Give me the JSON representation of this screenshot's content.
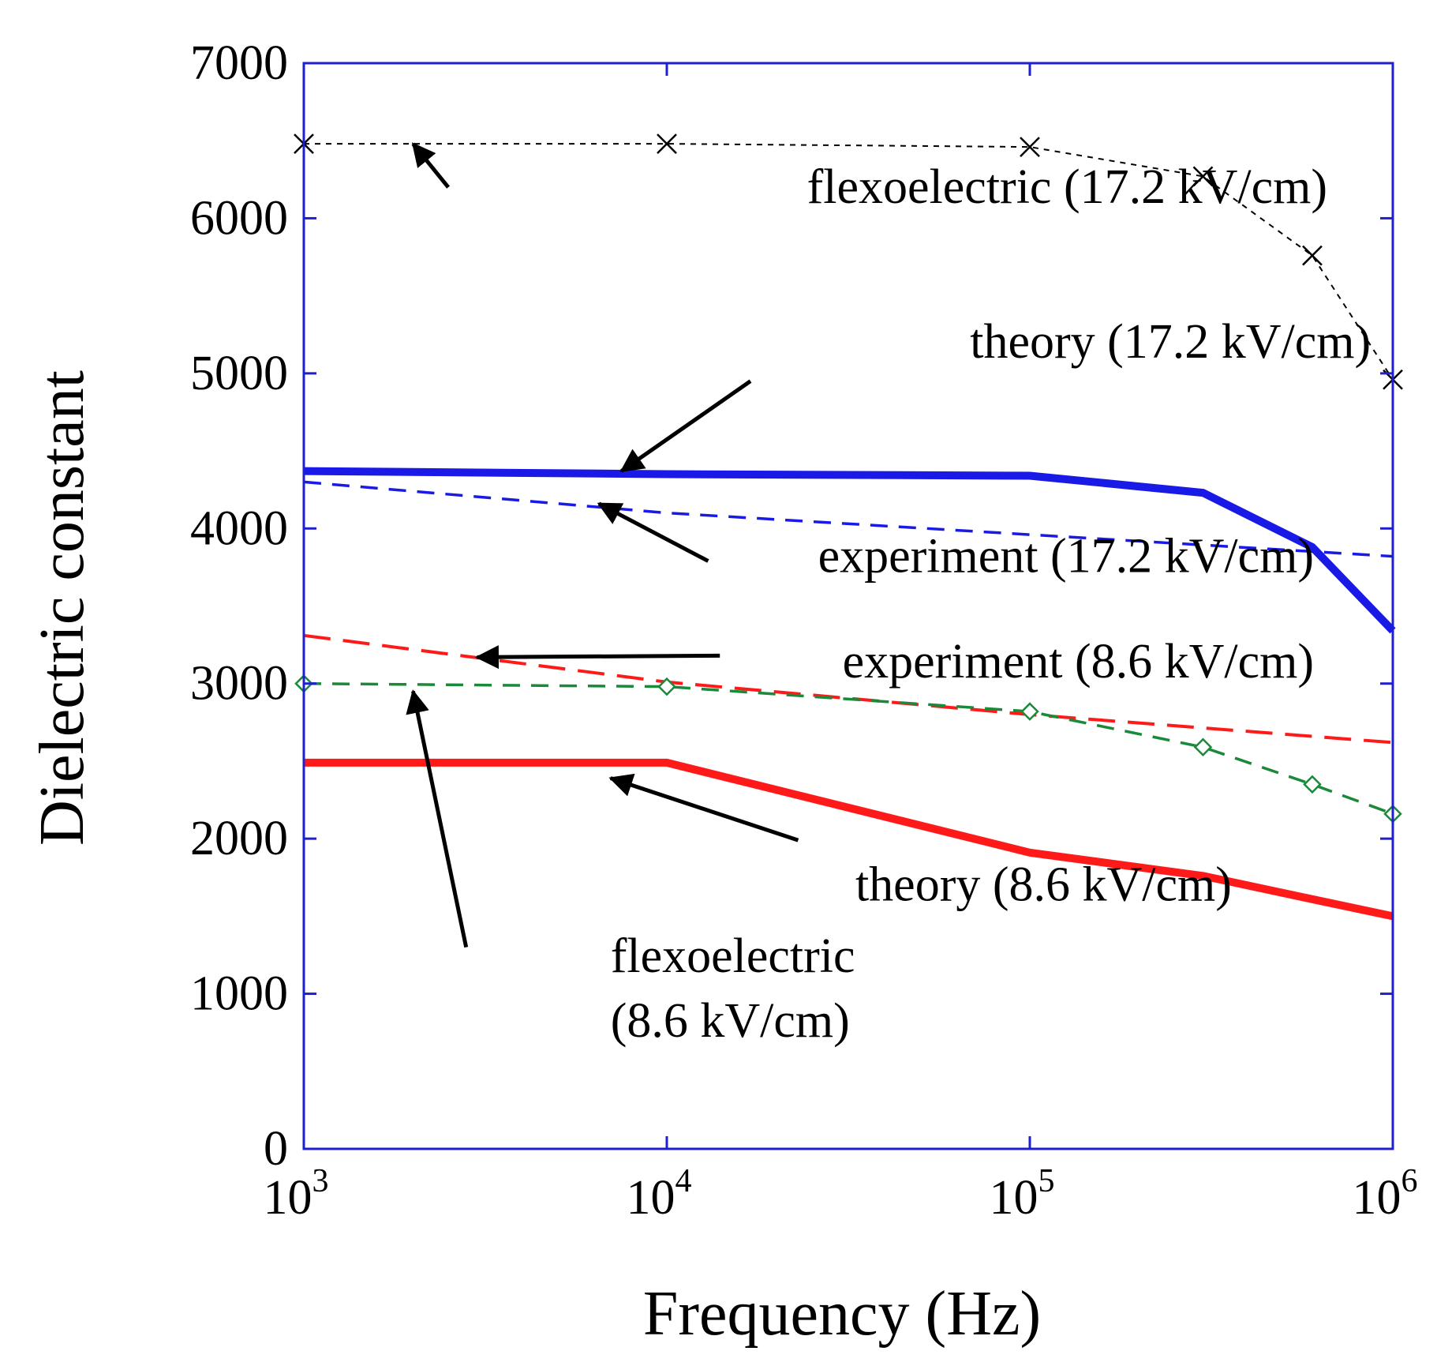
{
  "chart_data": {
    "type": "line",
    "title": "",
    "xlabel": "Frequency (Hz)",
    "ylabel": "Dielectric constant",
    "xscale": "log",
    "xlim": [
      1000,
      1000000
    ],
    "ylim": [
      0,
      7000
    ],
    "grid": false,
    "x_ticks": [
      {
        "value": 1000,
        "base": "10",
        "exp": "3"
      },
      {
        "value": 10000,
        "base": "10",
        "exp": "4"
      },
      {
        "value": 100000,
        "base": "10",
        "exp": "5"
      },
      {
        "value": 1000000,
        "base": "10",
        "exp": "6"
      }
    ],
    "y_ticks": [
      "0",
      "1000",
      "2000",
      "3000",
      "4000",
      "5000",
      "6000",
      "7000"
    ],
    "colors": {
      "axes": "#1f1fd0",
      "blue": "#1a1ae6",
      "red": "#ff1a1a",
      "green": "#1a8a3a",
      "black": "#000000"
    },
    "series": [
      {
        "name": "flexoelectric (17.2 kV/cm)",
        "color": "#000000",
        "style": "dotted",
        "marker": "x",
        "x": [
          1000,
          10000,
          100000,
          300000,
          600000,
          1000000
        ],
        "y": [
          6480,
          6480,
          6460,
          6270,
          5760,
          4960
        ]
      },
      {
        "name": "theory (17.2 kV/cm)",
        "color": "#1a1ae6",
        "style": "solid-thick",
        "marker": "none",
        "x": [
          1000,
          10000,
          100000,
          300000,
          600000,
          1000000
        ],
        "y": [
          4370,
          4350,
          4340,
          4230,
          3880,
          3340
        ]
      },
      {
        "name": "experiment (17.2 kV/cm)",
        "color": "#1a1ae6",
        "style": "dashed",
        "marker": "none",
        "x": [
          1000,
          10000,
          100000,
          1000000
        ],
        "y": [
          4300,
          4100,
          3960,
          3820
        ]
      },
      {
        "name": "experiment (8.6 kV/cm)",
        "color": "#ff1a1a",
        "style": "dashed-long",
        "marker": "none",
        "x": [
          1000,
          10000,
          100000,
          1000000
        ],
        "y": [
          3310,
          3010,
          2800,
          2620
        ]
      },
      {
        "name": "flexoelectric (8.6 kV/cm)",
        "color": "#1a8a3a",
        "style": "dashed",
        "marker": "diamond",
        "x": [
          1000,
          10000,
          100000,
          300000,
          600000,
          1000000
        ],
        "y": [
          3000,
          2980,
          2820,
          2590,
          2350,
          2160
        ]
      },
      {
        "name": "theory (8.6 kV/cm)",
        "color": "#ff1a1a",
        "style": "solid-thick",
        "marker": "none",
        "x": [
          1000,
          10000,
          100000,
          300000,
          600000,
          1000000
        ],
        "y": [
          2490,
          2490,
          1910,
          1760,
          1610,
          1500
        ]
      }
    ],
    "annotations": [
      {
        "lines": [
          "flexoelectric (17.2 kV/cm)"
        ],
        "text_x": 660000,
        "text_y": 6100,
        "arrow_from": [
          2500,
          6200
        ],
        "arrow_to": [
          2000,
          6480
        ]
      },
      {
        "lines": [
          "theory (17.2 kV/cm)"
        ],
        "text_x": 870000,
        "text_y": 5100,
        "arrow_from": [
          17000,
          4950
        ],
        "arrow_to": [
          7500,
          4370
        ]
      },
      {
        "lines": [
          "experiment (17.2 kV/cm)"
        ],
        "text_x": 1000000,
        "text_y": 3720,
        "arrow_from": [
          13000,
          3790
        ],
        "arrow_to": [
          6500,
          4160
        ]
      },
      {
        "lines": [
          "experiment (8.6 kV/cm)"
        ],
        "text_x": 1000000,
        "text_y": 3040,
        "arrow_from": [
          14000,
          3180
        ],
        "arrow_to": [
          3000,
          3170
        ]
      },
      {
        "lines": [
          "theory (8.6 kV/cm)"
        ],
        "text_x": 360000,
        "text_y": 1600,
        "arrow_from": [
          23000,
          1990
        ],
        "arrow_to": [
          7000,
          2390
        ]
      },
      {
        "lines": [
          "flexoelectric",
          "(8.6 kV/cm)"
        ],
        "text_x": 7000,
        "text_y": 1140,
        "arrow_from": [
          2800,
          1300
        ],
        "arrow_to": [
          2000,
          2950
        ]
      }
    ]
  }
}
